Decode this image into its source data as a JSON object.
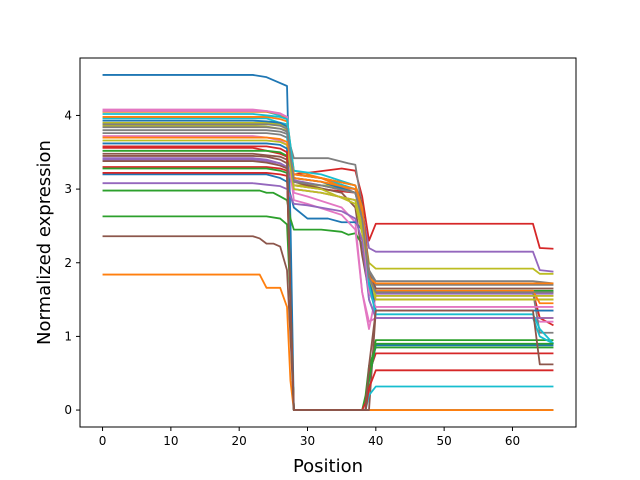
{
  "chart_data": {
    "type": "line",
    "xlabel": "Position",
    "ylabel": "Normalized expression",
    "xlim": [
      -3.3,
      69.3
    ],
    "ylim": [
      -0.23,
      4.78
    ],
    "xticks": [
      0,
      10,
      20,
      30,
      40,
      50,
      60
    ],
    "yticks": [
      0,
      1,
      2,
      3,
      4
    ],
    "grid": false,
    "series": [
      {
        "color": "#1f77b4",
        "x": [
          0,
          22,
          24,
          26,
          27,
          27.5,
          28,
          38,
          39,
          66
        ],
        "y": [
          4.55,
          4.55,
          4.52,
          4.44,
          4.4,
          2.6,
          0,
          0,
          0,
          0
        ]
      },
      {
        "color": "#ff7f0e",
        "x": [
          0,
          23,
          24,
          25,
          26,
          27,
          27.5,
          28,
          38,
          39,
          66
        ],
        "y": [
          1.84,
          1.84,
          1.66,
          1.66,
          1.66,
          1.4,
          0.4,
          0,
          0,
          0,
          0
        ]
      },
      {
        "color": "#2ca02c",
        "x": [
          0,
          23,
          24,
          26,
          27,
          27.5,
          28,
          38,
          38.5,
          39,
          40,
          66
        ],
        "y": [
          2.63,
          2.63,
          2.63,
          2.6,
          2.52,
          1.5,
          0,
          0,
          0,
          0.5,
          0.95,
          0.95
        ]
      },
      {
        "color": "#d62728",
        "x": [
          0,
          22,
          24,
          26,
          27,
          28,
          30,
          35,
          37,
          38,
          39,
          40,
          63,
          64,
          66
        ],
        "y": [
          3.56,
          3.56,
          3.52,
          3.48,
          3.44,
          3.2,
          3.22,
          3.28,
          3.25,
          2.9,
          2.3,
          2.53,
          2.53,
          2.2,
          2.19
        ]
      },
      {
        "color": "#9467bd",
        "x": [
          0,
          22,
          24,
          26,
          27,
          28,
          32,
          37,
          38,
          39,
          40,
          63,
          64,
          66
        ],
        "y": [
          3.4,
          3.4,
          3.38,
          3.35,
          3.3,
          3.12,
          3.05,
          3.0,
          2.7,
          2.2,
          2.15,
          2.15,
          1.9,
          1.88
        ]
      },
      {
        "color": "#8c564b",
        "x": [
          0,
          22,
          23,
          24,
          25,
          26,
          27,
          27.5,
          28,
          38,
          39,
          40,
          64,
          66
        ],
        "y": [
          2.36,
          2.36,
          2.33,
          2.26,
          2.26,
          2.22,
          1.9,
          1.0,
          0,
          0,
          0,
          1.35,
          1.35,
          1.35
        ]
      },
      {
        "color": "#e377c2",
        "x": [
          0,
          22,
          24,
          26,
          27,
          28,
          30,
          35,
          37,
          38,
          39,
          40,
          63,
          66
        ],
        "y": [
          4.08,
          4.08,
          4.06,
          4.03,
          3.98,
          2.95,
          2.9,
          2.75,
          2.55,
          1.6,
          1.1,
          1.55,
          1.55,
          1.55
        ]
      },
      {
        "color": "#7f7f7f",
        "x": [
          0,
          22,
          24,
          26,
          27,
          28,
          33,
          36,
          37,
          38,
          39,
          40,
          63,
          66
        ],
        "y": [
          3.8,
          3.8,
          3.8,
          3.78,
          3.75,
          3.42,
          3.42,
          3.35,
          3.33,
          2.75,
          1.9,
          1.75,
          1.75,
          1.72
        ]
      },
      {
        "color": "#bcbd22",
        "x": [
          0,
          22,
          24,
          26,
          27,
          28,
          33,
          37,
          38,
          39,
          40,
          63,
          64,
          66
        ],
        "y": [
          3.86,
          3.86,
          3.85,
          3.82,
          3.8,
          3.05,
          3.05,
          2.95,
          2.6,
          2.0,
          1.92,
          1.92,
          1.85,
          1.85
        ]
      },
      {
        "color": "#17becf",
        "x": [
          0,
          22,
          24,
          26,
          27,
          28,
          32,
          37,
          38,
          39,
          40,
          63,
          64,
          66
        ],
        "y": [
          4.05,
          4.05,
          4.05,
          4.0,
          3.95,
          3.2,
          3.15,
          3.0,
          2.7,
          1.5,
          1.25,
          1.25,
          1.0,
          0.9
        ]
      },
      {
        "color": "#1f77b4",
        "x": [
          0,
          22,
          24,
          26,
          27,
          28,
          30,
          33,
          35,
          37,
          38,
          39,
          40,
          63,
          66
        ],
        "y": [
          3.2,
          3.2,
          3.2,
          3.15,
          3.1,
          2.75,
          2.6,
          2.6,
          2.55,
          2.55,
          2.45,
          1.75,
          1.6,
          1.6,
          1.6
        ]
      },
      {
        "color": "#ff7f0e",
        "x": [
          0,
          22,
          24,
          26,
          27,
          28,
          32,
          37,
          38,
          39,
          40,
          63,
          64,
          66
        ],
        "y": [
          4.05,
          4.05,
          4.05,
          4.02,
          3.95,
          3.25,
          3.15,
          2.95,
          2.6,
          1.75,
          1.6,
          1.6,
          1.25,
          1.25
        ]
      },
      {
        "color": "#2ca02c",
        "x": [
          0,
          22,
          23,
          24,
          25,
          26,
          27,
          27.5,
          28,
          32,
          35,
          36,
          37,
          38,
          39,
          40,
          63,
          64,
          66
        ],
        "y": [
          2.98,
          2.98,
          2.98,
          2.95,
          2.95,
          2.9,
          2.85,
          2.6,
          2.45,
          2.45,
          2.42,
          2.38,
          2.4,
          2.25,
          1.7,
          1.62,
          1.62,
          1.62,
          1.62
        ]
      },
      {
        "color": "#d62728",
        "x": [
          0,
          22,
          24,
          26,
          27,
          28,
          32,
          37,
          38,
          39,
          40,
          63,
          64,
          66
        ],
        "y": [
          3.3,
          3.3,
          3.3,
          3.28,
          3.25,
          3.05,
          3.0,
          2.95,
          2.6,
          1.7,
          1.6,
          1.6,
          1.25,
          1.15
        ]
      },
      {
        "color": "#9467bd",
        "x": [
          0,
          22,
          24,
          26,
          27,
          28,
          32,
          37,
          38,
          39,
          40,
          63,
          66
        ],
        "y": [
          3.42,
          3.42,
          3.4,
          3.35,
          3.3,
          3.0,
          2.95,
          2.85,
          2.5,
          1.7,
          1.58,
          1.58,
          1.58
        ]
      },
      {
        "color": "#8c564b",
        "x": [
          0,
          22,
          24,
          26,
          27,
          28,
          30,
          35,
          37,
          38,
          39,
          40,
          63,
          66
        ],
        "y": [
          3.38,
          3.38,
          3.36,
          3.32,
          3.28,
          3.1,
          3.05,
          2.95,
          2.75,
          2.1,
          1.6,
          1.5,
          1.5,
          1.5
        ]
      },
      {
        "color": "#e377c2",
        "x": [
          0,
          22,
          24,
          26,
          27,
          28,
          30,
          35,
          37,
          38,
          39,
          40,
          63,
          64,
          66
        ],
        "y": [
          3.72,
          3.72,
          3.7,
          3.66,
          3.6,
          2.85,
          2.8,
          2.65,
          2.45,
          1.6,
          1.2,
          1.25,
          1.25,
          1.2,
          1.2
        ]
      },
      {
        "color": "#7f7f7f",
        "x": [
          0,
          22,
          24,
          26,
          27,
          28,
          32,
          37,
          38,
          39,
          40,
          63,
          64,
          66
        ],
        "y": [
          3.76,
          3.76,
          3.76,
          3.74,
          3.7,
          3.15,
          3.1,
          3.0,
          2.7,
          1.8,
          1.6,
          1.6,
          1.05,
          1.05
        ]
      },
      {
        "color": "#bcbd22",
        "x": [
          0,
          22,
          24,
          26,
          27,
          28,
          32,
          37,
          38,
          39,
          40,
          63,
          66
        ],
        "y": [
          3.9,
          3.9,
          3.9,
          3.88,
          3.85,
          3.05,
          3.0,
          2.8,
          2.4,
          1.7,
          1.5,
          1.5,
          1.5
        ]
      },
      {
        "color": "#17becf",
        "x": [
          0,
          22,
          24,
          26,
          27,
          27.5,
          28,
          38,
          38.5,
          39,
          40,
          66
        ],
        "y": [
          3.96,
          3.96,
          3.96,
          3.9,
          3.88,
          1.5,
          0,
          0,
          0,
          0.2,
          0.32,
          0.32
        ]
      },
      {
        "color": "#1f77b4",
        "x": [
          0,
          22,
          24,
          26,
          27,
          28,
          32,
          37,
          38,
          39,
          40,
          63,
          66
        ],
        "y": [
          3.93,
          3.93,
          3.92,
          3.9,
          3.85,
          3.15,
          3.1,
          2.95,
          2.6,
          1.8,
          1.35,
          1.35,
          1.35
        ]
      },
      {
        "color": "#ff7f0e",
        "x": [
          0,
          22,
          24,
          26,
          27,
          28,
          32,
          37,
          38,
          39,
          40,
          63,
          64,
          66
        ],
        "y": [
          3.98,
          3.98,
          3.98,
          3.95,
          3.92,
          3.15,
          3.1,
          3.0,
          2.65,
          1.85,
          1.62,
          1.62,
          1.45,
          1.45
        ]
      },
      {
        "color": "#2ca02c",
        "x": [
          0,
          22,
          24,
          26,
          27,
          27.5,
          28,
          38,
          38.5,
          39,
          40,
          66
        ],
        "y": [
          3.28,
          3.28,
          3.28,
          3.25,
          3.22,
          1.5,
          0,
          0,
          0.2,
          0.6,
          0.85,
          0.85
        ]
      },
      {
        "color": "#d62728",
        "x": [
          0,
          22,
          24,
          26,
          27,
          27.5,
          28,
          38,
          38.5,
          39,
          40,
          66
        ],
        "y": [
          3.22,
          3.22,
          3.22,
          3.2,
          3.18,
          1.5,
          0,
          0,
          0.1,
          0.5,
          0.77,
          0.77
        ]
      },
      {
        "color": "#9467bd",
        "x": [
          0,
          22,
          24,
          26,
          27,
          28,
          30,
          35,
          37,
          38,
          39,
          40,
          63,
          66
        ],
        "y": [
          3.08,
          3.08,
          3.06,
          3.04,
          3.0,
          2.8,
          2.78,
          2.7,
          2.6,
          2.3,
          1.5,
          1.25,
          1.25,
          1.25
        ]
      },
      {
        "color": "#8c564b",
        "x": [
          0,
          22,
          24,
          26,
          27,
          28,
          32,
          37,
          38,
          39,
          40,
          63,
          66
        ],
        "y": [
          3.48,
          3.48,
          3.46,
          3.44,
          3.4,
          3.2,
          3.15,
          3.05,
          2.8,
          1.9,
          1.65,
          1.65,
          1.65
        ]
      },
      {
        "color": "#e377c2",
        "x": [
          0,
          22,
          24,
          26,
          27,
          28,
          32,
          37,
          38,
          39,
          40,
          63,
          64,
          66
        ],
        "y": [
          4.06,
          4.06,
          4.06,
          4.02,
          3.98,
          3.0,
          2.95,
          2.85,
          2.55,
          1.6,
          1.4,
          1.4,
          1.4,
          1.4
        ]
      },
      {
        "color": "#7f7f7f",
        "x": [
          0,
          22,
          24,
          26,
          27,
          28,
          32,
          37,
          38,
          39,
          40,
          63,
          66
        ],
        "y": [
          3.84,
          3.84,
          3.84,
          3.82,
          3.78,
          3.1,
          3.05,
          2.95,
          2.6,
          1.9,
          1.7,
          1.7,
          1.7
        ]
      },
      {
        "color": "#bcbd22",
        "x": [
          0,
          22,
          24,
          26,
          27,
          28,
          32,
          37,
          38,
          39,
          40,
          63,
          66
        ],
        "y": [
          3.66,
          3.66,
          3.66,
          3.64,
          3.6,
          3.0,
          2.95,
          2.85,
          2.5,
          1.8,
          1.55,
          1.55,
          1.55
        ]
      },
      {
        "color": "#17becf",
        "x": [
          0,
          22,
          24,
          26,
          27,
          28,
          32,
          37,
          38,
          39,
          40,
          63,
          64,
          66
        ],
        "y": [
          4.02,
          4.02,
          4.0,
          3.98,
          3.95,
          3.25,
          3.2,
          3.05,
          2.75,
          1.7,
          1.3,
          1.3,
          1.1,
          0.9
        ]
      },
      {
        "color": "#1f77b4",
        "x": [
          0,
          22,
          24,
          26,
          27,
          27.5,
          28,
          38,
          38.5,
          39,
          40,
          66
        ],
        "y": [
          3.62,
          3.62,
          3.62,
          3.6,
          3.55,
          1.5,
          0,
          0,
          0,
          0.4,
          0.88,
          0.88
        ]
      },
      {
        "color": "#ff7f0e",
        "x": [
          0,
          22,
          24,
          26,
          27,
          28,
          32,
          37,
          38,
          39,
          40,
          63,
          66
        ],
        "y": [
          3.7,
          3.7,
          3.7,
          3.68,
          3.64,
          3.2,
          3.15,
          3.05,
          2.75,
          1.8,
          1.72,
          1.72,
          1.72
        ]
      },
      {
        "color": "#2ca02c",
        "x": [
          0,
          22,
          24,
          26,
          27,
          27.5,
          28,
          38,
          38.5,
          39,
          40,
          66
        ],
        "y": [
          3.52,
          3.52,
          3.52,
          3.5,
          3.45,
          1.5,
          0,
          0,
          0,
          0.4,
          0.9,
          0.9
        ]
      },
      {
        "color": "#d62728",
        "x": [
          0,
          22,
          24,
          26,
          27,
          27.5,
          28,
          38,
          38.5,
          39,
          40,
          66
        ],
        "y": [
          3.58,
          3.58,
          3.58,
          3.55,
          3.5,
          1.5,
          0,
          0,
          0,
          0.3,
          0.54,
          0.54
        ]
      },
      {
        "color": "#8c564b",
        "x": [
          0,
          22,
          24,
          26,
          27,
          27.5,
          28,
          38,
          38.5,
          39,
          40,
          63,
          64,
          66
        ],
        "y": [
          3.45,
          3.45,
          3.44,
          3.4,
          3.35,
          1.5,
          0,
          0,
          0,
          0.6,
          1.35,
          1.35,
          0.62,
          0.62
        ]
      },
      {
        "color": "#7f7f7f",
        "x": [
          0,
          22,
          24,
          26,
          27,
          28,
          32,
          37,
          38,
          39,
          40,
          63,
          66
        ],
        "y": [
          3.88,
          3.88,
          3.88,
          3.86,
          3.82,
          3.1,
          3.05,
          2.95,
          2.6,
          1.8,
          1.6,
          1.6,
          1.6
        ]
      }
    ]
  }
}
